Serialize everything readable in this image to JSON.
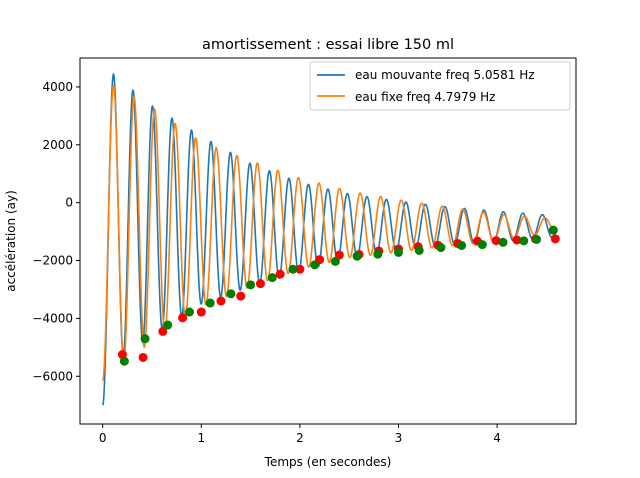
{
  "chart_data": {
    "type": "line",
    "title": "amortissement : essai libre 150 ml",
    "xlabel": "Temps (en secondes)",
    "ylabel": "accélération  (ay)",
    "xlim": [
      -0.23,
      4.8
    ],
    "ylim": [
      -7650,
      5000
    ],
    "xticks": [
      0,
      1,
      2,
      3,
      4
    ],
    "xtick_labels": [
      "0",
      "1",
      "2",
      "3",
      "4"
    ],
    "yticks": [
      -6000,
      -4000,
      -2000,
      0,
      2000,
      4000
    ],
    "ytick_labels": [
      "−6000",
      "−4000",
      "−2000",
      "0",
      "2000",
      "4000"
    ],
    "grid": false,
    "legend_position": "top-right",
    "colors": {
      "blue": "#1f77b4",
      "orange": "#ff7f0e",
      "red_markers": "#ff0000",
      "green_markers": "#008000"
    },
    "series": [
      {
        "name": "eau mouvante freq 5.0581 Hz",
        "color": "#1f77b4",
        "model": {
          "t_start": 0.0,
          "t_end": 4.6,
          "frequency_hz": 5.0581,
          "start_value": -7000,
          "first_peak_time": 0.11,
          "envelope_points": [
            [
              0.11,
              4450
            ],
            [
              0.5,
              3350
            ],
            [
              1.0,
              2300
            ],
            [
              1.5,
              1350
            ],
            [
              2.0,
              700
            ],
            [
              2.5,
              300
            ],
            [
              3.0,
              50
            ],
            [
              3.5,
              -150
            ],
            [
              4.0,
              -300
            ],
            [
              4.6,
              -450
            ]
          ],
          "trough_points": [
            [
              0.21,
              -5300
            ],
            [
              0.5,
              -4600
            ],
            [
              1.0,
              -3500
            ],
            [
              1.5,
              -2900
            ],
            [
              2.0,
              -2400
            ],
            [
              2.5,
              -1900
            ],
            [
              3.0,
              -1650
            ],
            [
              3.5,
              -1450
            ],
            [
              4.0,
              -1350
            ],
            [
              4.6,
              -1200
            ]
          ]
        }
      },
      {
        "name": "eau fixe freq 4.7979 Hz",
        "color": "#ff7f0e",
        "model": {
          "t_start": 0.0,
          "t_end": 4.6,
          "frequency_hz": 4.7979,
          "start_value": -6150,
          "first_peak_time": 0.11,
          "envelope_points": [
            [
              0.11,
              4050
            ],
            [
              0.5,
              3300
            ],
            [
              1.0,
              2100
            ],
            [
              1.5,
              1450
            ],
            [
              2.0,
              850
            ],
            [
              2.5,
              400
            ],
            [
              3.0,
              100
            ],
            [
              3.5,
              -150
            ],
            [
              4.0,
              -400
            ],
            [
              4.6,
              -550
            ]
          ],
          "trough_points": [
            [
              0.22,
              -5500
            ],
            [
              0.5,
              -4800
            ],
            [
              1.0,
              -3600
            ],
            [
              1.5,
              -2900
            ],
            [
              2.0,
              -2300
            ],
            [
              2.5,
              -1900
            ],
            [
              3.0,
              -1700
            ],
            [
              3.5,
              -1500
            ],
            [
              4.0,
              -1350
            ],
            [
              4.6,
              -1000
            ]
          ]
        }
      }
    ],
    "marker_series": [
      {
        "color": "#ff0000",
        "points": [
          [
            0.2,
            -5250
          ],
          [
            0.41,
            -5350
          ],
          [
            0.61,
            -4450
          ],
          [
            0.81,
            -3980
          ],
          [
            1.0,
            -3780
          ],
          [
            1.2,
            -3400
          ],
          [
            1.4,
            -3230
          ],
          [
            1.6,
            -2800
          ],
          [
            1.8,
            -2470
          ],
          [
            2.0,
            -2300
          ],
          [
            2.2,
            -1970
          ],
          [
            2.4,
            -1810
          ],
          [
            2.6,
            -1790
          ],
          [
            2.8,
            -1670
          ],
          [
            3.0,
            -1600
          ],
          [
            3.2,
            -1520
          ],
          [
            3.4,
            -1470
          ],
          [
            3.6,
            -1410
          ],
          [
            3.8,
            -1330
          ],
          [
            3.99,
            -1310
          ],
          [
            4.2,
            -1290
          ],
          [
            4.39,
            -1260
          ],
          [
            4.59,
            -1250
          ]
        ]
      },
      {
        "color": "#008000",
        "points": [
          [
            0.22,
            -5480
          ],
          [
            0.43,
            -4700
          ],
          [
            0.66,
            -4230
          ],
          [
            0.88,
            -3780
          ],
          [
            1.09,
            -3470
          ],
          [
            1.3,
            -3150
          ],
          [
            1.5,
            -2840
          ],
          [
            1.72,
            -2590
          ],
          [
            1.93,
            -2300
          ],
          [
            2.15,
            -2150
          ],
          [
            2.36,
            -2030
          ],
          [
            2.58,
            -1850
          ],
          [
            2.79,
            -1780
          ],
          [
            3.0,
            -1720
          ],
          [
            3.21,
            -1650
          ],
          [
            3.43,
            -1550
          ],
          [
            3.64,
            -1480
          ],
          [
            3.85,
            -1450
          ],
          [
            4.06,
            -1370
          ],
          [
            4.27,
            -1320
          ],
          [
            4.4,
            -1270
          ],
          [
            4.57,
            -950
          ]
        ]
      }
    ]
  }
}
